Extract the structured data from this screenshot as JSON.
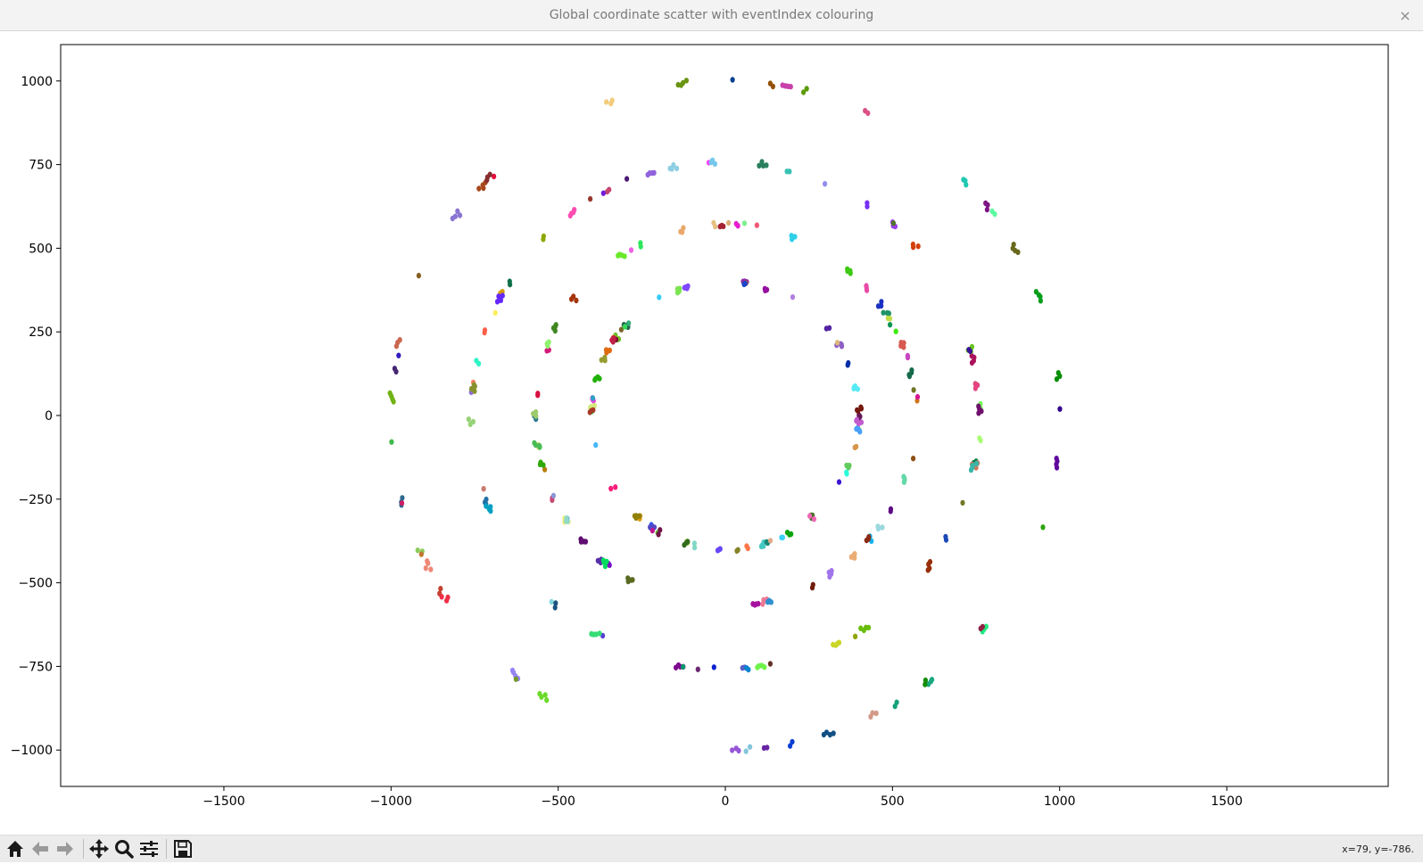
{
  "window": {
    "title": "Global coordinate scatter with eventIndex colouring",
    "close_label": "×"
  },
  "toolbar": {
    "buttons": [
      {
        "name": "home-button",
        "icon": "home-icon"
      },
      {
        "name": "back-button",
        "icon": "arrow-left-icon"
      },
      {
        "name": "forward-button",
        "icon": "arrow-right-icon"
      },
      {
        "name": "pan-button",
        "icon": "move-icon"
      },
      {
        "name": "zoom-button",
        "icon": "magnifier-icon"
      },
      {
        "name": "configure-subplots-button",
        "icon": "sliders-icon"
      },
      {
        "name": "save-button",
        "icon": "floppy-disk-icon"
      }
    ],
    "coords": "x=79, y=-786."
  },
  "chart_data": {
    "type": "scatter",
    "title": "",
    "xlabel": "",
    "ylabel": "",
    "xlim": [
      -1500,
      1500
    ],
    "ylim": [
      -1100,
      1100
    ],
    "xticks": [
      -1500,
      -1000,
      -500,
      0,
      500,
      1000,
      1500
    ],
    "yticks": [
      -1000,
      -750,
      -500,
      -250,
      0,
      250,
      500,
      750,
      1000
    ],
    "xticklabels": [
      "−1500",
      "−1000",
      "−500",
      "0",
      "500",
      "1000",
      "1500"
    ],
    "yticklabels": [
      "−1000",
      "−750",
      "−500",
      "−250",
      "0",
      "250",
      "500",
      "750",
      "1000"
    ],
    "grid": false,
    "legend": "none",
    "colour_by": "eventIndex",
    "series": [
      {
        "ring_radius": 400,
        "points": 150
      },
      {
        "ring_radius": 570,
        "points": 150
      },
      {
        "ring_radius": 760,
        "points": 140
      },
      {
        "ring_radius": 1000,
        "points": 120
      }
    ]
  }
}
